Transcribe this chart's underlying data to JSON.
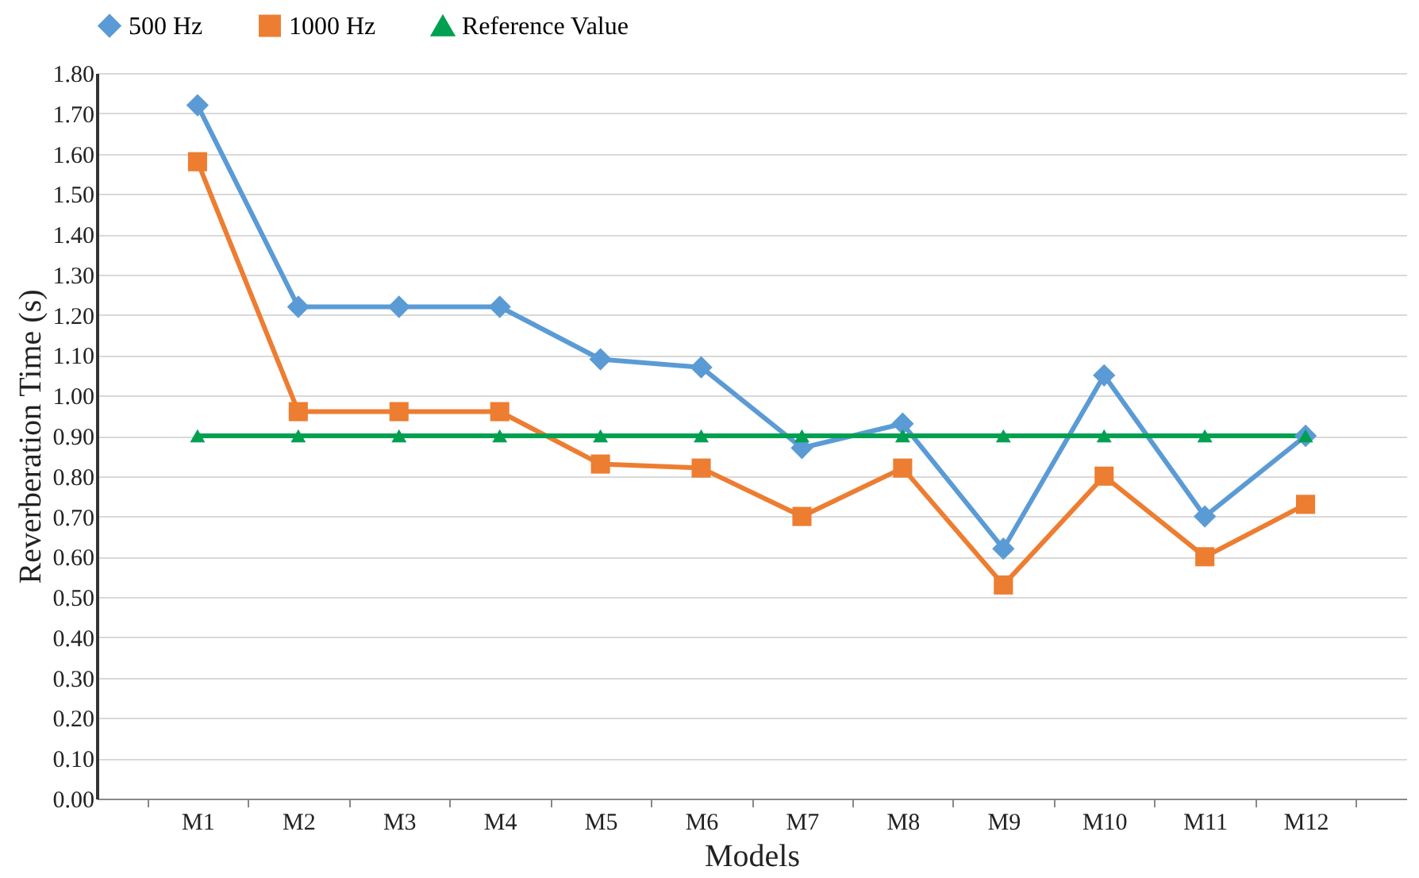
{
  "chart_data": {
    "type": "line",
    "xlabel": "Models",
    "ylabel": "Reverberation Time (s)",
    "categories": [
      "M1",
      "M2",
      "M3",
      "M4",
      "M5",
      "M6",
      "M7",
      "M8",
      "M9",
      "M10",
      "M11",
      "M12"
    ],
    "series": [
      {
        "name": "500 Hz",
        "color": "#5b9bd5",
        "marker": "diamond",
        "values": [
          1.72,
          1.22,
          1.22,
          1.22,
          1.09,
          1.07,
          0.87,
          0.93,
          0.62,
          1.05,
          0.7,
          0.9
        ]
      },
      {
        "name": "1000 Hz",
        "color": "#ed7d31",
        "marker": "square",
        "values": [
          1.58,
          0.96,
          0.96,
          0.96,
          0.83,
          0.82,
          0.7,
          0.82,
          0.53,
          0.8,
          0.6,
          0.73
        ]
      },
      {
        "name": "Reference Value",
        "color": "#00a050",
        "marker": "triangle",
        "values": [
          0.9,
          0.9,
          0.9,
          0.9,
          0.9,
          0.9,
          0.9,
          0.9,
          0.9,
          0.9,
          0.9,
          0.9
        ]
      }
    ],
    "ylim": [
      0,
      1.8
    ],
    "yticks": [
      {
        "value": 0,
        "label": "0.00"
      },
      {
        "value": 0.1,
        "label": "0.10"
      },
      {
        "value": 0.2,
        "label": "0.20"
      },
      {
        "value": 0.3,
        "label": "0.30"
      },
      {
        "value": 0.4,
        "label": "0.40"
      },
      {
        "value": 0.5,
        "label": "0.50"
      },
      {
        "value": 0.6,
        "label": "0.60"
      },
      {
        "value": 0.7,
        "label": "0.70"
      },
      {
        "value": 0.8,
        "label": "0.80"
      },
      {
        "value": 0.9,
        "label": "0.90"
      },
      {
        "value": 1.0,
        "label": "1.00"
      },
      {
        "value": 1.1,
        "label": "1.10"
      },
      {
        "value": 1.2,
        "label": "1.20"
      },
      {
        "value": 1.3,
        "label": "1.30"
      },
      {
        "value": 1.4,
        "label": "1.40"
      },
      {
        "value": 1.5,
        "label": "1.50"
      },
      {
        "value": 1.6,
        "label": "1.60"
      },
      {
        "value": 1.7,
        "label": "1.70"
      },
      {
        "value": 1.8,
        "label": "1.80"
      }
    ],
    "grid": "y",
    "legend": "top",
    "line_style": "solid"
  }
}
